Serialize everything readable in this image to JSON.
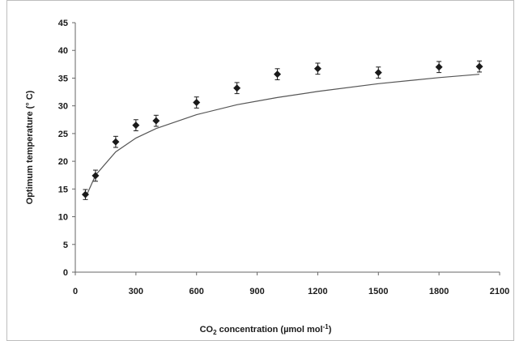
{
  "chart_data": {
    "type": "scatter",
    "title": "",
    "xlabel": {
      "prefix": "CO",
      "subscript": "2",
      "main": " concentration (µmol mol",
      "superscript": "-1",
      "suffix": ")"
    },
    "ylabel": "Optimum temperature (° C)",
    "xlim": [
      0,
      2100
    ],
    "ylim": [
      0,
      45
    ],
    "x_ticks": [
      "0",
      "300",
      "600",
      "900",
      "1200",
      "1500",
      "1800",
      "2100"
    ],
    "y_ticks": [
      "0",
      "5",
      "10",
      "15",
      "20",
      "25",
      "30",
      "35",
      "40",
      "45"
    ],
    "grid": false,
    "legend": "none",
    "marker": "diamond",
    "marker_color": "#1a1a1a",
    "curve_color": "#555555",
    "points": [
      {
        "x": 50,
        "y": 14.0,
        "err": 0.9
      },
      {
        "x": 100,
        "y": 17.4,
        "err": 1.0
      },
      {
        "x": 200,
        "y": 23.5,
        "err": 1.0
      },
      {
        "x": 300,
        "y": 26.5,
        "err": 1.0
      },
      {
        "x": 400,
        "y": 27.3,
        "err": 1.0
      },
      {
        "x": 600,
        "y": 30.6,
        "err": 1.0
      },
      {
        "x": 800,
        "y": 33.2,
        "err": 1.0
      },
      {
        "x": 1000,
        "y": 35.7,
        "err": 1.0
      },
      {
        "x": 1200,
        "y": 36.7,
        "err": 1.0
      },
      {
        "x": 1500,
        "y": 36.0,
        "err": 1.0
      },
      {
        "x": 1800,
        "y": 37.0,
        "err": 1.0
      },
      {
        "x": 2000,
        "y": 37.1,
        "err": 1.0
      }
    ],
    "fit_curve": {
      "type": "logarithmic",
      "x": [
        50,
        100,
        200,
        300,
        400,
        600,
        800,
        1000,
        1200,
        1500,
        1800,
        2000
      ],
      "y": [
        13.4,
        17.5,
        21.7,
        24.2,
        25.9,
        28.4,
        30.2,
        31.5,
        32.6,
        34.0,
        35.1,
        35.7
      ]
    }
  }
}
